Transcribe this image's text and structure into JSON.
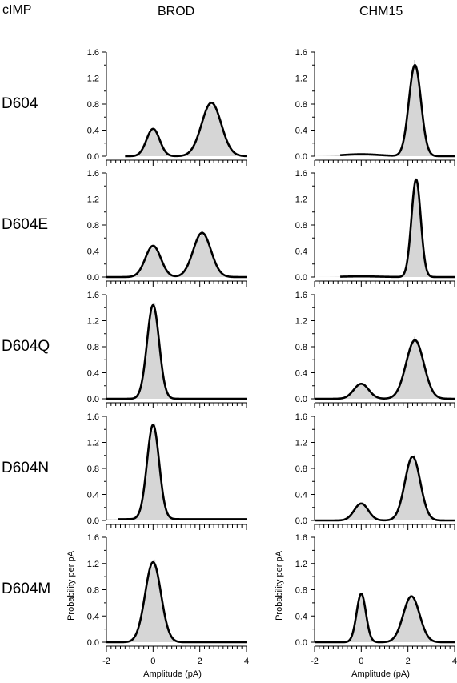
{
  "figure": {
    "column_header_row": "cIMP",
    "columns": [
      "BROD",
      "CHM15"
    ],
    "rows": [
      "D604",
      "D604E",
      "D604Q",
      "D604N",
      "D604M"
    ]
  },
  "chart_data": {
    "type": "area",
    "layout": "5x2 grid of amplitude histograms with fitted Gaussian curves",
    "xlabel": "Amplitude (pA)",
    "ylabel": "Probability per pA",
    "xlim": [
      -2,
      4
    ],
    "ylim": [
      0,
      1.6
    ],
    "x_ticks": [
      -2,
      0,
      2,
      4
    ],
    "y_ticks": [
      0.0,
      0.4,
      0.8,
      1.2,
      1.6
    ],
    "y_tick_labels": [
      "0.0",
      "0.4",
      "0.8",
      "1.2",
      "1.6"
    ],
    "histogram_color": "#d6d6d6",
    "fit_color": "#000000",
    "panels": [
      {
        "row": "D604",
        "column": "BROD",
        "fit_x_range": [
          -1.2,
          4.0
        ],
        "baseline": 0.0,
        "peaks": [
          {
            "center": 0.0,
            "height": 0.42,
            "sigma": 0.28
          },
          {
            "center": 2.5,
            "height": 0.82,
            "sigma": 0.42
          }
        ]
      },
      {
        "row": "D604",
        "column": "CHM15",
        "fit_x_range": [
          -0.9,
          4.0
        ],
        "baseline": 0.0,
        "peaks": [
          {
            "center": 0.0,
            "height": 0.03,
            "sigma": 0.8
          },
          {
            "center": 2.3,
            "height": 1.4,
            "sigma": 0.26
          }
        ]
      },
      {
        "row": "D604E",
        "column": "BROD",
        "fit_x_range": [
          -2.0,
          4.0
        ],
        "baseline": 0.0,
        "peaks": [
          {
            "center": 0.0,
            "height": 0.48,
            "sigma": 0.33
          },
          {
            "center": 2.1,
            "height": 0.68,
            "sigma": 0.38
          }
        ]
      },
      {
        "row": "D604E",
        "column": "CHM15",
        "fit_x_range": [
          -0.9,
          4.0
        ],
        "baseline": 0.0,
        "peaks": [
          {
            "center": 0.0,
            "height": 0.01,
            "sigma": 0.8
          },
          {
            "center": 2.35,
            "height": 1.5,
            "sigma": 0.2
          }
        ]
      },
      {
        "row": "D604Q",
        "column": "BROD",
        "fit_x_range": [
          -2.0,
          4.0
        ],
        "baseline": 0.0,
        "peaks": [
          {
            "center": 0.0,
            "height": 1.44,
            "sigma": 0.26
          }
        ]
      },
      {
        "row": "D604Q",
        "column": "CHM15",
        "fit_x_range": [
          -2.0,
          4.0
        ],
        "baseline": 0.0,
        "peaks": [
          {
            "center": 0.0,
            "height": 0.23,
            "sigma": 0.32
          },
          {
            "center": 2.3,
            "height": 0.9,
            "sigma": 0.38
          }
        ]
      },
      {
        "row": "D604N",
        "column": "BROD",
        "fit_x_range": [
          -1.5,
          4.0
        ],
        "baseline": 0.02,
        "peaks": [
          {
            "center": 0.0,
            "height": 1.45,
            "sigma": 0.26
          }
        ]
      },
      {
        "row": "D604N",
        "column": "CHM15",
        "fit_x_range": [
          -2.0,
          4.0
        ],
        "baseline": 0.0,
        "peaks": [
          {
            "center": 0.0,
            "height": 0.26,
            "sigma": 0.3
          },
          {
            "center": 2.2,
            "height": 0.98,
            "sigma": 0.33
          }
        ]
      },
      {
        "row": "D604M",
        "column": "BROD",
        "fit_x_range": [
          -2.0,
          4.0
        ],
        "baseline": 0.0,
        "peaks": [
          {
            "center": 0.0,
            "height": 1.22,
            "sigma": 0.34
          }
        ]
      },
      {
        "row": "D604M",
        "column": "CHM15",
        "fit_x_range": [
          -2.0,
          4.0
        ],
        "baseline": 0.0,
        "peaks": [
          {
            "center": 0.0,
            "height": 0.74,
            "sigma": 0.2
          },
          {
            "center": 2.15,
            "height": 0.7,
            "sigma": 0.35
          }
        ]
      }
    ]
  }
}
